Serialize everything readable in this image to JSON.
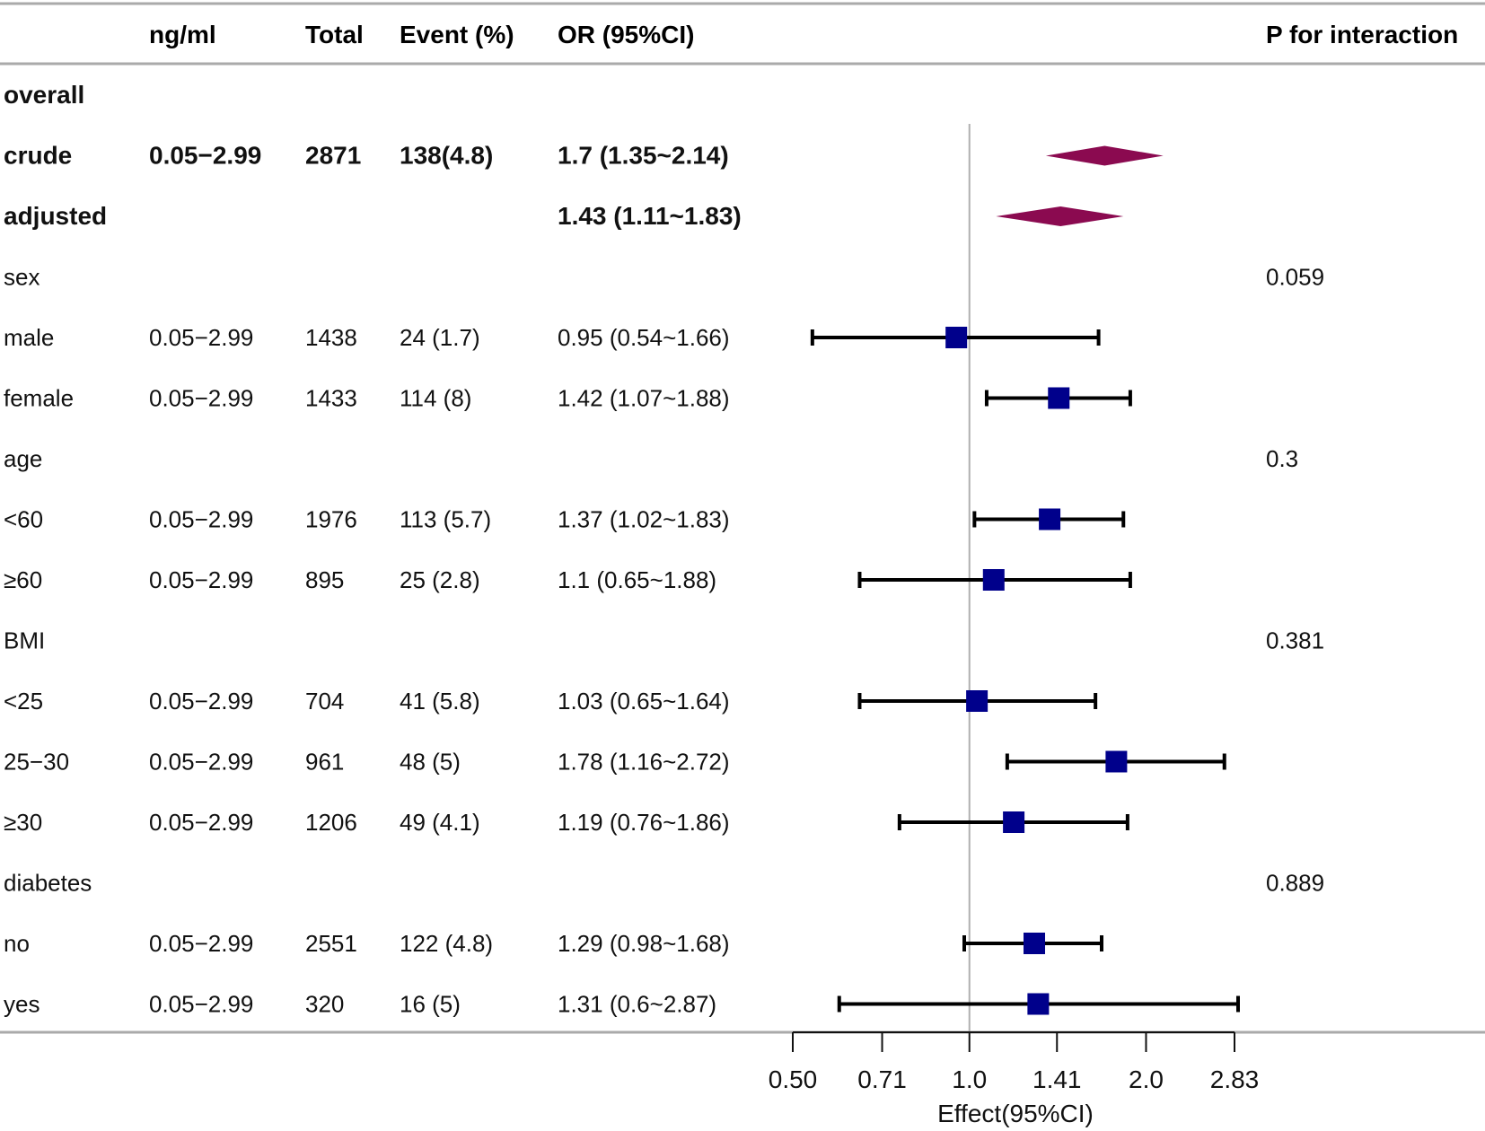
{
  "chart_data": {
    "type": "forest",
    "title": "",
    "columns": [
      "",
      "ng/ml",
      "Total",
      "Event (%)",
      "OR (95%CI)",
      "P for interaction"
    ],
    "xlabel": "Effect(95%CI)",
    "x_scale": "log",
    "xlim": [
      0.5,
      2.83
    ],
    "xticks": [
      0.5,
      0.71,
      1.0,
      1.41,
      2.0,
      2.83
    ],
    "xtick_labels": [
      "0.50",
      "0.71",
      "1.0",
      "1.41",
      "2.0",
      "2.83"
    ],
    "reference_line": 1.0,
    "rows": [
      {
        "label": "overall",
        "bold": true,
        "ng": "",
        "total": "",
        "event": "",
        "or_text": "",
        "p": "",
        "type": "header"
      },
      {
        "label": "crude",
        "bold": true,
        "ng": "0.05−2.99",
        "total": "2871",
        "event": "138(4.8)",
        "or_text": "1.7 (1.35~2.14)",
        "p": "",
        "type": "diamond",
        "est": 1.7,
        "lo": 1.35,
        "hi": 2.14
      },
      {
        "label": "adjusted",
        "bold": true,
        "ng": "",
        "total": "",
        "event": "",
        "or_text": "1.43 (1.11~1.83)",
        "p": "",
        "type": "diamond",
        "est": 1.43,
        "lo": 1.11,
        "hi": 1.83
      },
      {
        "label": "sex",
        "bold": false,
        "ng": "",
        "total": "",
        "event": "",
        "or_text": "",
        "p": "0.059",
        "type": "header"
      },
      {
        "label": "male",
        "bold": false,
        "ng": "0.05−2.99",
        "total": "1438",
        "event": "24 (1.7)",
        "or_text": "0.95 (0.54~1.66)",
        "p": "",
        "type": "square",
        "est": 0.95,
        "lo": 0.54,
        "hi": 1.66
      },
      {
        "label": "female",
        "bold": false,
        "ng": "0.05−2.99",
        "total": "1433",
        "event": "114 (8)",
        "or_text": "1.42 (1.07~1.88)",
        "p": "",
        "type": "square",
        "est": 1.42,
        "lo": 1.07,
        "hi": 1.88
      },
      {
        "label": "age",
        "bold": false,
        "ng": "",
        "total": "",
        "event": "",
        "or_text": "",
        "p": "0.3",
        "type": "header"
      },
      {
        "label": "<60",
        "bold": false,
        "ng": "0.05−2.99",
        "total": "1976",
        "event": "113 (5.7)",
        "or_text": "1.37 (1.02~1.83)",
        "p": "",
        "type": "square",
        "est": 1.37,
        "lo": 1.02,
        "hi": 1.83
      },
      {
        "label": "≥60",
        "bold": false,
        "ng": "0.05−2.99",
        "total": "895",
        "event": "25 (2.8)",
        "or_text": "1.1 (0.65~1.88)",
        "p": "",
        "type": "square",
        "est": 1.1,
        "lo": 0.65,
        "hi": 1.88
      },
      {
        "label": "BMI",
        "bold": false,
        "ng": "",
        "total": "",
        "event": "",
        "or_text": "",
        "p": "0.381",
        "type": "header"
      },
      {
        "label": "<25",
        "bold": false,
        "ng": "0.05−2.99",
        "total": "704",
        "event": "41 (5.8)",
        "or_text": "1.03 (0.65~1.64)",
        "p": "",
        "type": "square",
        "est": 1.03,
        "lo": 0.65,
        "hi": 1.64
      },
      {
        "label": "25−30",
        "bold": false,
        "ng": "0.05−2.99",
        "total": "961",
        "event": "48 (5)",
        "or_text": "1.78 (1.16~2.72)",
        "p": "",
        "type": "square",
        "est": 1.78,
        "lo": 1.16,
        "hi": 2.72
      },
      {
        "label": "≥30",
        "bold": false,
        "ng": "0.05−2.99",
        "total": "1206",
        "event": "49 (4.1)",
        "or_text": "1.19 (0.76~1.86)",
        "p": "",
        "type": "square",
        "est": 1.19,
        "lo": 0.76,
        "hi": 1.86
      },
      {
        "label": "diabetes",
        "bold": false,
        "ng": "",
        "total": "",
        "event": "",
        "or_text": "",
        "p": "0.889",
        "type": "header"
      },
      {
        "label": "no",
        "bold": false,
        "ng": "0.05−2.99",
        "total": "2551",
        "event": "122 (4.8)",
        "or_text": "1.29 (0.98~1.68)",
        "p": "",
        "type": "square",
        "est": 1.29,
        "lo": 0.98,
        "hi": 1.68
      },
      {
        "label": "yes",
        "bold": false,
        "ng": "0.05−2.99",
        "total": "320",
        "event": "16 (5)",
        "or_text": "1.31 (0.6~2.87)",
        "p": "",
        "type": "square",
        "est": 1.31,
        "lo": 0.6,
        "hi": 2.87
      }
    ],
    "colors": {
      "square": "#00008b",
      "diamond": "#8b0a50",
      "whisker": "#000000",
      "reference": "#b0b0b0",
      "rule": "#aaaaaa"
    }
  }
}
